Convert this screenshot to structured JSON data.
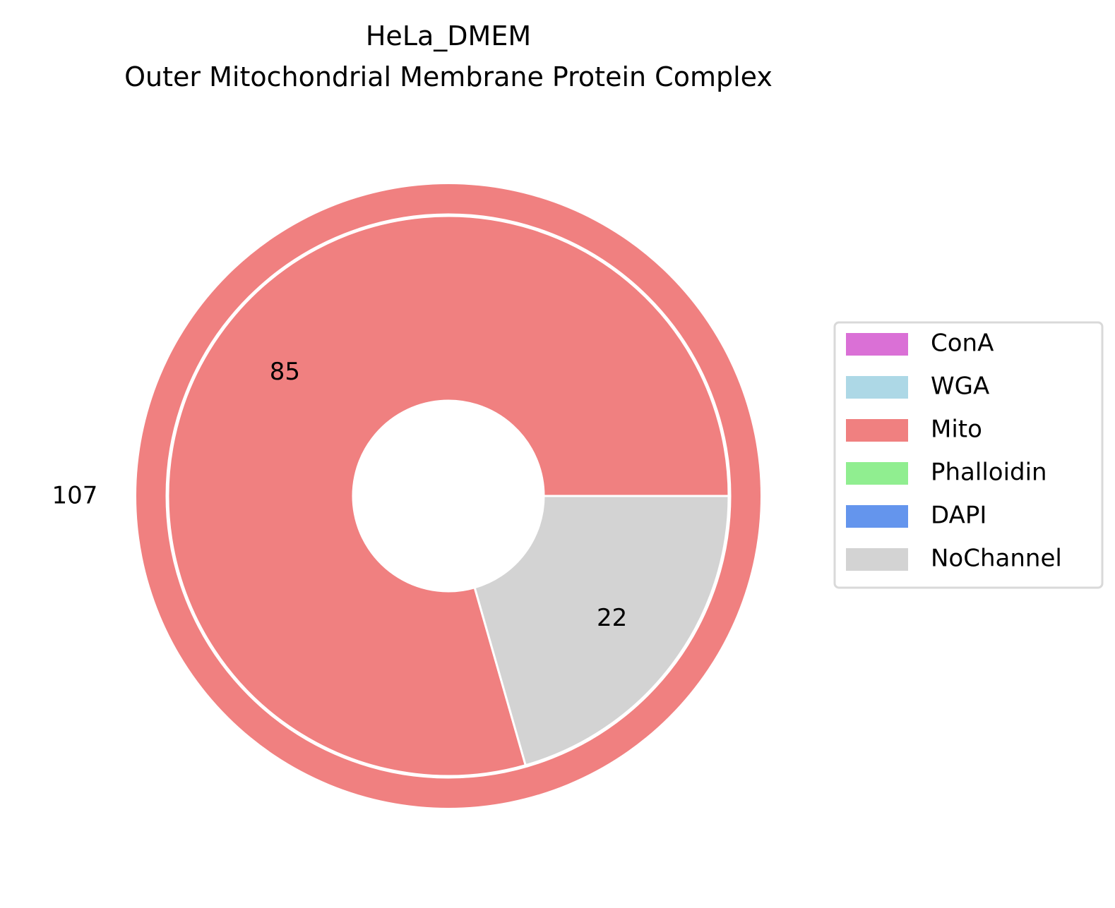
{
  "chart_data": {
    "type": "pie",
    "title_line1": "HeLa_DMEM",
    "title_line2": "Outer Mitochondrial Membrane Protein Complex",
    "outer_ring": {
      "total_label": "107",
      "slices": [
        {
          "category": "Mito",
          "value": 107,
          "color": "#f08080"
        }
      ]
    },
    "inner_ring": {
      "slices": [
        {
          "category": "Mito",
          "value": 85,
          "label": "85",
          "color": "#f08080"
        },
        {
          "category": "NoChannel",
          "value": 22,
          "label": "22",
          "color": "#d3d3d3"
        }
      ]
    },
    "legend": {
      "placement": "center-right",
      "items": [
        {
          "label": "ConA",
          "color": "#da70d6"
        },
        {
          "label": "WGA",
          "color": "#add8e6"
        },
        {
          "label": "Mito",
          "color": "#f08080"
        },
        {
          "label": "Phalloidin",
          "color": "#90ee90"
        },
        {
          "label": "DAPI",
          "color": "#6495ed"
        },
        {
          "label": "NoChannel",
          "color": "#d3d3d3"
        }
      ]
    }
  }
}
